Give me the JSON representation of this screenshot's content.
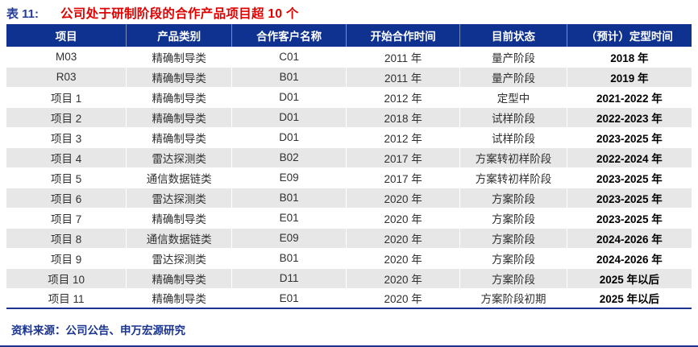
{
  "figure": {
    "label": "表 11:",
    "title": "公司处于研制阶段的合作产品项目超 10 个"
  },
  "table": {
    "headers": [
      "项目",
      "产品类别",
      "合作客户名称",
      "开始合作时间",
      "目前状态",
      "（预计）定型时间"
    ],
    "rows": [
      [
        "M03",
        "精确制导类",
        "C01",
        "2011 年",
        "量产阶段",
        "2018 年"
      ],
      [
        "R03",
        "精确制导类",
        "B01",
        "2011 年",
        "量产阶段",
        "2019 年"
      ],
      [
        "项目 1",
        "精确制导类",
        "D01",
        "2012 年",
        "定型中",
        "2021-2022 年"
      ],
      [
        "项目 2",
        "精确制导类",
        "D01",
        "2018 年",
        "试样阶段",
        "2022-2023 年"
      ],
      [
        "项目 3",
        "精确制导类",
        "D01",
        "2012 年",
        "试样阶段",
        "2023-2025 年"
      ],
      [
        "项目 4",
        "雷达探测类",
        "B02",
        "2017 年",
        "方案转初样阶段",
        "2022-2024 年"
      ],
      [
        "项目 5",
        "通信数据链类",
        "E09",
        "2017 年",
        "方案转初样阶段",
        "2023-2025 年"
      ],
      [
        "项目 6",
        "雷达探测类",
        "B01",
        "2020 年",
        "方案阶段",
        "2023-2025 年"
      ],
      [
        "项目 7",
        "精确制导类",
        "E01",
        "2020 年",
        "方案阶段",
        "2023-2025 年"
      ],
      [
        "项目 8",
        "通信数据链类",
        "E09",
        "2020 年",
        "方案阶段",
        "2024-2026 年"
      ],
      [
        "项目 9",
        "雷达探测类",
        "B01",
        "2020 年",
        "方案阶段",
        "2024-2026 年"
      ],
      [
        "项目 10",
        "精确制导类",
        "D11",
        "2020 年",
        "方案阶段",
        "2025 年以后"
      ],
      [
        "项目 11",
        "精确制导类",
        "E01",
        "2020 年",
        "方案阶段初期",
        "2025 年以后"
      ]
    ]
  },
  "source": "资料来源：公司公告、申万宏源研究",
  "colors": {
    "header_bg": "#0F318F",
    "navy": "#1A3490",
    "stripe": "#E7E7E7",
    "title_red": "#E10000"
  }
}
